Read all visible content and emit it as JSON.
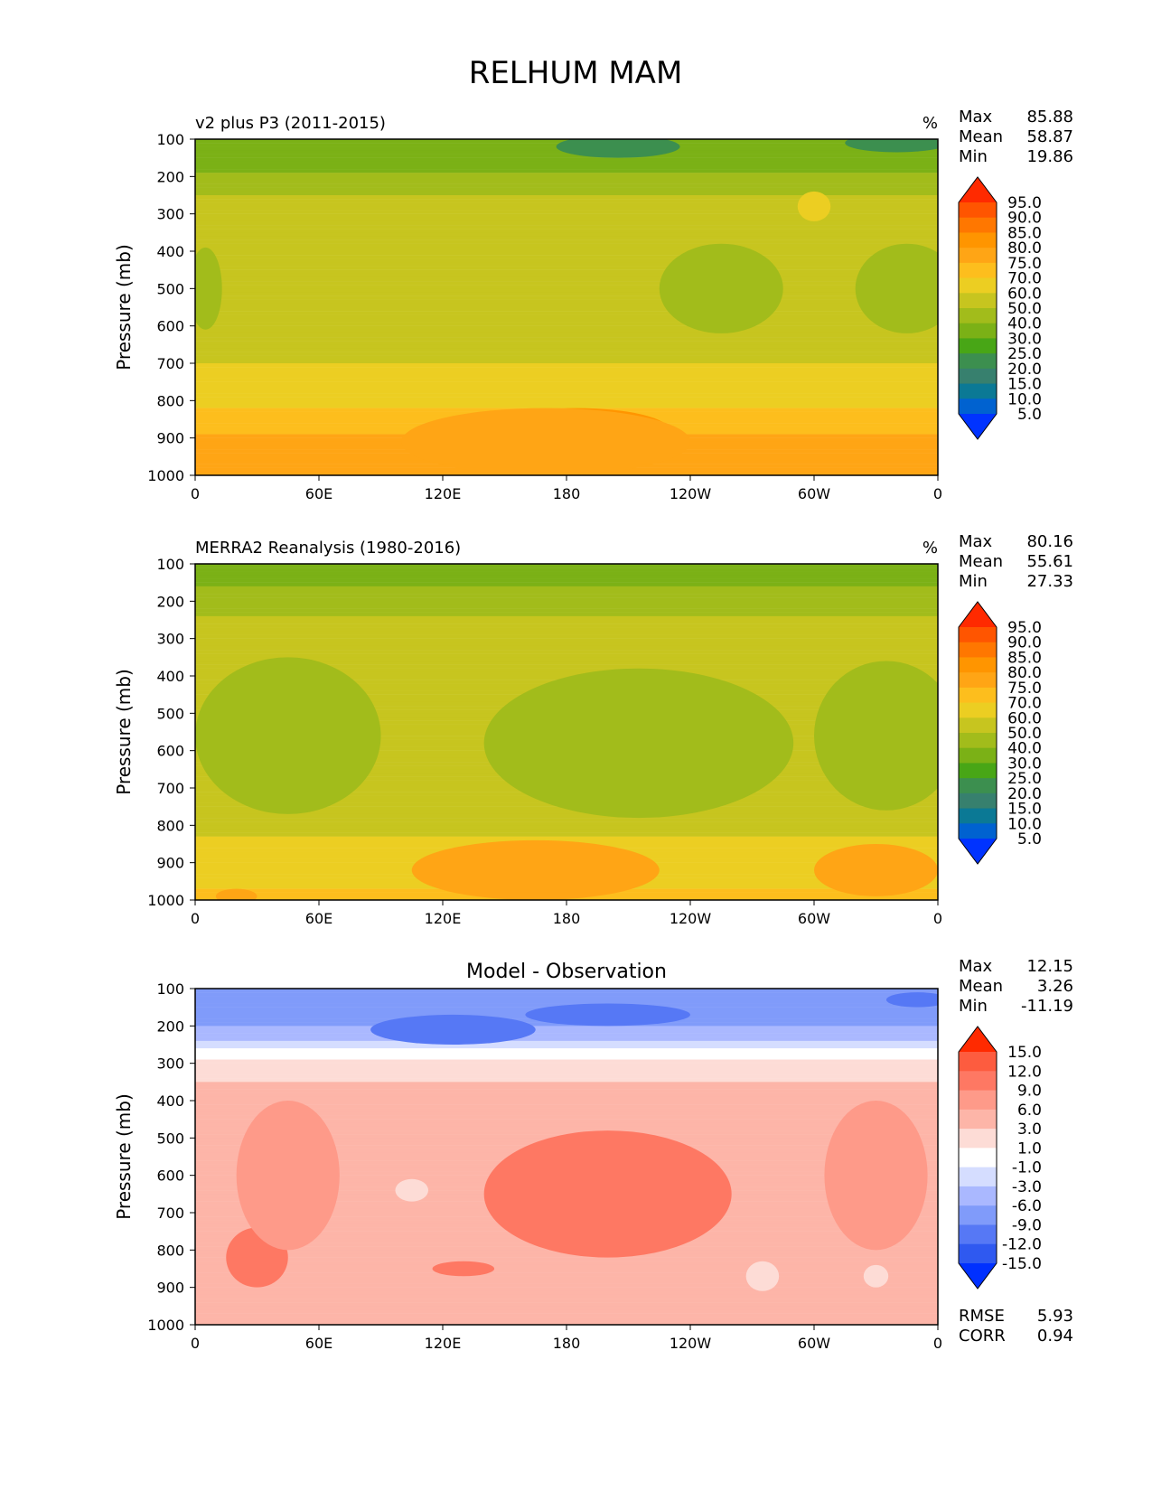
{
  "title": "RELHUM MAM",
  "ylabel": "Pressure (mb)",
  "x_ticks": [
    "0",
    "60E",
    "120E",
    "180",
    "120W",
    "60W",
    "0"
  ],
  "y_ticks": [
    "100",
    "200",
    "300",
    "400",
    "500",
    "600",
    "700",
    "800",
    "900",
    "1000"
  ],
  "stat_labels": {
    "max": "Max",
    "mean": "Mean",
    "min": "Min",
    "rmse": "RMSE",
    "corr": "CORR"
  },
  "chart_data": [
    {
      "type": "heatmap",
      "title": "v2 plus P3 (2011-2015)",
      "units": "%",
      "xlabel": "",
      "ylabel": "Pressure (mb)",
      "xlim": [
        0,
        360
      ],
      "ylim": [
        1000,
        100
      ],
      "stats": {
        "max": "85.88",
        "mean": "58.87",
        "min": "19.86"
      },
      "colorbar": {
        "levels": [
          "95.0",
          "90.0",
          "85.0",
          "80.0",
          "75.0",
          "70.0",
          "60.0",
          "50.0",
          "40.0",
          "30.0",
          "25.0",
          "20.0",
          "15.0",
          "10.0",
          "5.0"
        ],
        "colors": [
          "#ff2a00",
          "#ff5500",
          "#ff7700",
          "#ff9500",
          "#ffa515",
          "#fdbe1d",
          "#ecce22",
          "#c7c51f",
          "#a2bc1b",
          "#7bb116",
          "#48a616",
          "#3c8f4f",
          "#37806e",
          "#0b7995",
          "#0062d0",
          "#0033ff"
        ]
      },
      "bands": [
        {
          "p": 100,
          "v": 30
        },
        {
          "p": 150,
          "v": 35
        },
        {
          "p": 200,
          "v": 42
        },
        {
          "p": 250,
          "v": 50
        },
        {
          "p": 300,
          "v": 55
        },
        {
          "p": 400,
          "v": 55
        },
        {
          "p": 500,
          "v": 52
        },
        {
          "p": 600,
          "v": 55
        },
        {
          "p": 700,
          "v": 60
        },
        {
          "p": 800,
          "v": 68
        },
        {
          "p": 900,
          "v": 76
        },
        {
          "p": 1000,
          "v": 78
        }
      ],
      "features": [
        {
          "lon": 205,
          "p": 120,
          "rx": 30,
          "ry": 30,
          "v": 22
        },
        {
          "lon": 340,
          "p": 110,
          "rx": 25,
          "ry": 25,
          "v": 22
        },
        {
          "lon": 255,
          "p": 500,
          "rx": 30,
          "ry": 120,
          "v": 45
        },
        {
          "lon": 345,
          "p": 500,
          "rx": 25,
          "ry": 120,
          "v": 45
        },
        {
          "lon": 5,
          "p": 500,
          "rx": 8,
          "ry": 110,
          "v": 45
        },
        {
          "lon": 185,
          "p": 880,
          "rx": 45,
          "ry": 60,
          "v": 82
        },
        {
          "lon": 170,
          "p": 910,
          "rx": 70,
          "ry": 90,
          "v": 78
        },
        {
          "lon": 300,
          "p": 280,
          "rx": 8,
          "ry": 40,
          "v": 62
        }
      ]
    },
    {
      "type": "heatmap",
      "title": "MERRA2 Reanalysis (1980-2016)",
      "units": "%",
      "xlabel": "",
      "ylabel": "Pressure (mb)",
      "xlim": [
        0,
        360
      ],
      "ylim": [
        1000,
        100
      ],
      "stats": {
        "max": "80.16",
        "mean": "55.61",
        "min": "27.33"
      },
      "colorbar": {
        "levels": [
          "95.0",
          "90.0",
          "85.0",
          "80.0",
          "75.0",
          "70.0",
          "60.0",
          "50.0",
          "40.0",
          "30.0",
          "25.0",
          "20.0",
          "15.0",
          "10.0",
          "5.0"
        ],
        "colors": [
          "#ff2a00",
          "#ff5500",
          "#ff7700",
          "#ff9500",
          "#ffa515",
          "#fdbe1d",
          "#ecce22",
          "#c7c51f",
          "#a2bc1b",
          "#7bb116",
          "#48a616",
          "#3c8f4f",
          "#37806e",
          "#0b7995",
          "#0062d0",
          "#0033ff"
        ]
      },
      "bands": [
        {
          "p": 100,
          "v": 35
        },
        {
          "p": 150,
          "v": 38
        },
        {
          "p": 200,
          "v": 45
        },
        {
          "p": 250,
          "v": 52
        },
        {
          "p": 300,
          "v": 52
        },
        {
          "p": 400,
          "v": 52
        },
        {
          "p": 500,
          "v": 52
        },
        {
          "p": 600,
          "v": 52
        },
        {
          "p": 700,
          "v": 52
        },
        {
          "p": 800,
          "v": 58
        },
        {
          "p": 900,
          "v": 65
        },
        {
          "p": 1000,
          "v": 72
        }
      ],
      "features": [
        {
          "lon": 45,
          "p": 560,
          "rx": 45,
          "ry": 210,
          "v": 45
        },
        {
          "lon": 215,
          "p": 580,
          "rx": 75,
          "ry": 200,
          "v": 45
        },
        {
          "lon": 335,
          "p": 560,
          "rx": 35,
          "ry": 200,
          "v": 45
        },
        {
          "lon": 165,
          "p": 920,
          "rx": 60,
          "ry": 80,
          "v": 76
        },
        {
          "lon": 330,
          "p": 920,
          "rx": 30,
          "ry": 70,
          "v": 76
        },
        {
          "lon": 20,
          "p": 990,
          "rx": 10,
          "ry": 20,
          "v": 76
        }
      ]
    },
    {
      "type": "heatmap",
      "title": "Model - Observation",
      "units": "",
      "xlabel": "",
      "ylabel": "Pressure (mb)",
      "xlim": [
        0,
        360
      ],
      "ylim": [
        1000,
        100
      ],
      "stats": {
        "max": "12.15",
        "mean": "3.26",
        "min": "-11.19"
      },
      "rmse": "5.93",
      "corr": "0.94",
      "colorbar": {
        "levels": [
          "15.0",
          "12.0",
          "9.0",
          "6.0",
          "3.0",
          "1.0",
          "-1.0",
          "-3.0",
          "-6.0",
          "-9.0",
          "-12.0",
          "-15.0"
        ],
        "colors": [
          "#ff2a00",
          "#fd5c3f",
          "#fe7863",
          "#fe9a89",
          "#fdb5a8",
          "#fddcd6",
          "#ffffff",
          "#d5ddff",
          "#aab8ff",
          "#809bfa",
          "#5678f5",
          "#2f59f0",
          "#0030ff"
        ]
      },
      "bands": [
        {
          "p": 100,
          "v": -6
        },
        {
          "p": 150,
          "v": -7
        },
        {
          "p": 200,
          "v": -6
        },
        {
          "p": 250,
          "v": -2
        },
        {
          "p": 300,
          "v": 2
        },
        {
          "p": 400,
          "v": 4
        },
        {
          "p": 500,
          "v": 5
        },
        {
          "p": 600,
          "v": 5
        },
        {
          "p": 700,
          "v": 5
        },
        {
          "p": 800,
          "v": 6
        },
        {
          "p": 900,
          "v": 5
        },
        {
          "p": 1000,
          "v": 4
        }
      ],
      "features": [
        {
          "lon": 125,
          "p": 210,
          "rx": 40,
          "ry": 40,
          "v": -10
        },
        {
          "lon": 200,
          "p": 170,
          "rx": 40,
          "ry": 30,
          "v": -10
        },
        {
          "lon": 350,
          "p": 130,
          "rx": 15,
          "ry": 20,
          "v": -10
        },
        {
          "lon": 200,
          "p": 650,
          "rx": 60,
          "ry": 170,
          "v": 11
        },
        {
          "lon": 30,
          "p": 820,
          "rx": 15,
          "ry": 80,
          "v": 11
        },
        {
          "lon": 130,
          "p": 850,
          "rx": 15,
          "ry": 20,
          "v": 11
        },
        {
          "lon": 45,
          "p": 600,
          "rx": 25,
          "ry": 200,
          "v": 7
        },
        {
          "lon": 330,
          "p": 600,
          "rx": 25,
          "ry": 200,
          "v": 7
        },
        {
          "lon": 105,
          "p": 640,
          "rx": 8,
          "ry": 30,
          "v": 1.5
        },
        {
          "lon": 275,
          "p": 870,
          "rx": 8,
          "ry": 40,
          "v": 1.5
        },
        {
          "lon": 330,
          "p": 870,
          "rx": 6,
          "ry": 30,
          "v": 1.5
        }
      ]
    }
  ]
}
